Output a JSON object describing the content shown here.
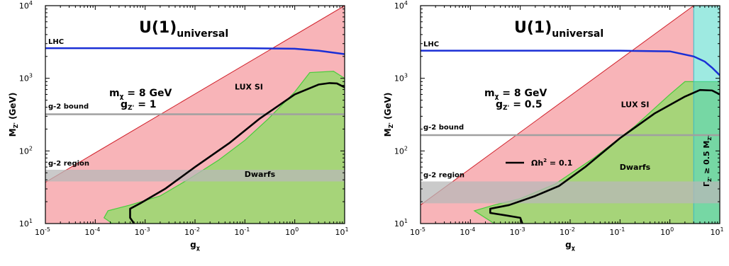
{
  "chart_data": [
    {
      "type": "area",
      "title": "U(1)",
      "title_subscript": "universal",
      "xlabel": "g",
      "xlabel_sub": "χ",
      "ylabel": "M",
      "ylabel_sub": "Z'",
      "ylabel_unit": "(GeV)",
      "xscale": "log",
      "yscale": "log",
      "xlim": [
        1e-05,
        10
      ],
      "ylim": [
        10,
        10000
      ],
      "x_ticks": [
        "10",
        "10",
        "10",
        "10",
        "10",
        "10",
        "10"
      ],
      "x_tick_exps": [
        "-5",
        "-4",
        "-3",
        "-2",
        "-1",
        "0",
        "1"
      ],
      "y_ticks": [
        "10",
        "10",
        "10",
        "10"
      ],
      "y_tick_exps": [
        "1",
        "2",
        "3",
        "4"
      ],
      "grid": false,
      "param_mass": "m",
      "param_mass_sub": "χ",
      "param_mass_value": "= 8 GeV",
      "param_coupling": "g",
      "param_coupling_sub": "Z'",
      "param_coupling_value": "= 1",
      "colors": {
        "lux": "#f8b4b8",
        "lux_edge": "#d0202a",
        "dwarfs": "#a6d479",
        "dwarfs_edge": "#48cc3c",
        "lhc": "#1a2fd6",
        "g2_bound": "#a0a0a0",
        "g2_region": "#b8b8b8",
        "relic": "#000000"
      },
      "regions": [
        {
          "name": "LUX SI",
          "label_at": [
            0.12,
            700
          ],
          "boundary": [
            [
              1e-05,
              37
            ],
            [
              10,
              10000
            ]
          ]
        },
        {
          "name": "Dwarfs",
          "label_at": [
            0.2,
            44
          ],
          "boundary": [
            [
              0.00022,
              10
            ],
            [
              0.00015,
              12
            ],
            [
              0.00018,
              15
            ],
            [
              0.0005,
              18
            ],
            [
              0.002,
              24
            ],
            [
              0.008,
              42
            ],
            [
              0.03,
              75
            ],
            [
              0.1,
              140
            ],
            [
              0.3,
              280
            ],
            [
              1,
              650
            ],
            [
              2,
              1200
            ],
            [
              6,
              1250
            ],
            [
              10,
              1000
            ]
          ]
        }
      ],
      "series": [
        {
          "name": "LHC",
          "x": [
            1e-05,
            0.001,
            0.1,
            1,
            3,
            10
          ],
          "y": [
            2600,
            2600,
            2600,
            2550,
            2400,
            2150
          ]
        },
        {
          "name": "g-2 bound",
          "x": [
            1e-05,
            10
          ],
          "y": [
            320,
            320
          ]
        },
        {
          "name": "g-2 region",
          "x": [
            1e-05,
            10
          ],
          "y_low": [
            38,
            38
          ],
          "y_high": [
            55,
            55
          ]
        },
        {
          "x": [
            0.0006,
            0.0005,
            0.0005,
            0.0008,
            0.0025,
            0.01,
            0.05,
            0.2,
            1,
            3,
            5,
            7,
            10
          ],
          "y": [
            10,
            12,
            16,
            19,
            30,
            60,
            130,
            280,
            600,
            820,
            860,
            850,
            750
          ]
        }
      ]
    },
    {
      "type": "area",
      "title": "U(1)",
      "title_subscript": "universal",
      "xlabel": "g",
      "xlabel_sub": "χ",
      "ylabel": "M",
      "ylabel_sub": "Z'",
      "ylabel_unit": "(GeV)",
      "xscale": "log",
      "yscale": "log",
      "xlim": [
        1e-05,
        10
      ],
      "ylim": [
        10,
        10000
      ],
      "x_ticks": [
        "10",
        "10",
        "10",
        "10",
        "10",
        "10",
        "10"
      ],
      "x_tick_exps": [
        "-5",
        "-4",
        "-3",
        "-2",
        "-1",
        "0",
        "1"
      ],
      "y_ticks": [
        "10",
        "10",
        "10",
        "10"
      ],
      "y_tick_exps": [
        "1",
        "2",
        "3",
        "4"
      ],
      "grid": false,
      "param_mass": "m",
      "param_mass_sub": "χ",
      "param_mass_value": "= 8 GeV",
      "param_coupling": "g",
      "param_coupling_sub": "Z'",
      "param_coupling_value": "= 0.5",
      "legend": {
        "label": "Ωh",
        "label_sup": "2",
        "label_rest": " = 0.1"
      },
      "width_label": "Γ",
      "width_label_sub": "Z'",
      "width_label_rest": " ≥ 0.5 M",
      "width_label_sub2": "Z'",
      "colors": {
        "lux": "#f8b4b8",
        "lux_edge": "#d0202a",
        "dwarfs": "#a6d479",
        "dwarfs_edge": "#48cc3c",
        "lhc": "#1a2fd6",
        "g2_bound": "#a0a0a0",
        "g2_region": "#b8b8b8",
        "relic": "#000000",
        "width_region": "#4ed8c8"
      },
      "regions": [
        {
          "name": "LUX SI",
          "label_at": [
            0.2,
            400
          ],
          "boundary": [
            [
              1e-05,
              18
            ],
            [
              3,
              10000
            ]
          ]
        },
        {
          "name": "Dwarfs",
          "label_at": [
            0.2,
            55
          ],
          "boundary": [
            [
              0.0003,
              10
            ],
            [
              0.00012,
              15
            ],
            [
              0.0003,
              18
            ],
            [
              0.001,
              22
            ],
            [
              0.005,
              35
            ],
            [
              0.03,
              80
            ],
            [
              0.2,
              220
            ],
            [
              1,
              600
            ],
            [
              2,
              900
            ],
            [
              10,
              900
            ]
          ]
        },
        {
          "name": "Γ ≥ 0.5 M",
          "x_min": 3
        }
      ],
      "series": [
        {
          "name": "LHC",
          "x": [
            1e-05,
            0.1,
            1,
            3,
            5,
            7,
            10
          ],
          "y": [
            2400,
            2400,
            2350,
            2000,
            1700,
            1400,
            1100
          ]
        },
        {
          "name": "g-2 bound",
          "x": [
            1e-05,
            10
          ],
          "y": [
            165,
            165
          ]
        },
        {
          "name": "g-2 region",
          "x": [
            1e-05,
            10
          ],
          "y_low": [
            19,
            19
          ],
          "y_high": [
            38,
            38
          ]
        },
        {
          "name": "Ωh² = 0.1",
          "x": [
            0.0011,
            0.001,
            0.0005,
            0.00025,
            0.00025,
            0.0006,
            0.002,
            0.006,
            0.02,
            0.1,
            0.5,
            2,
            4,
            7,
            10
          ],
          "y": [
            10,
            12,
            13,
            14,
            16,
            18,
            24,
            33,
            60,
            150,
            330,
            560,
            690,
            680,
            600
          ]
        }
      ]
    }
  ]
}
